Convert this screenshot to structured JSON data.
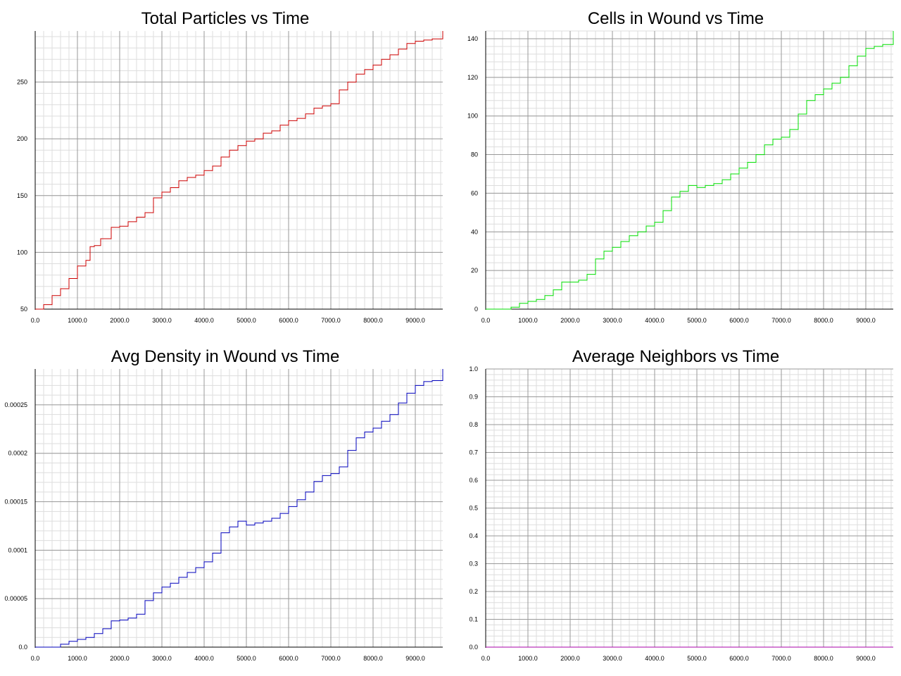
{
  "chart_data": [
    {
      "type": "line",
      "title": "Total Particles vs Time",
      "xlabel": "",
      "ylabel": "",
      "xlim": [
        0,
        9650
      ],
      "ylim": [
        50,
        295
      ],
      "x_ticks": [
        0,
        1000,
        2000,
        3000,
        4000,
        5000,
        6000,
        7000,
        8000,
        9000
      ],
      "x_tick_labels": [
        "0.0",
        "1000.0",
        "2000.0",
        "3000.0",
        "4000.0",
        "5000.0",
        "6000.0",
        "7000.0",
        "8000.0",
        "9000.0"
      ],
      "y_ticks": [
        50,
        100,
        150,
        200,
        250
      ],
      "y_tick_labels": [
        "50",
        "100",
        "150",
        "200",
        "250"
      ],
      "x_minor_step": 200,
      "y_minor_step": 10,
      "grid": true,
      "color": "#cc0000",
      "series": [
        {
          "x": [
            0,
            200,
            400,
            600,
            800,
            1000,
            1200,
            1300,
            1400,
            1550,
            1800,
            2000,
            2200,
            2400,
            2600,
            2800,
            3000,
            3200,
            3400,
            3600,
            3800,
            4000,
            4200,
            4400,
            4600,
            4800,
            5000,
            5200,
            5400,
            5600,
            5800,
            6000,
            6200,
            6400,
            6600,
            6800,
            7000,
            7200,
            7400,
            7600,
            7800,
            8000,
            8200,
            8400,
            8600,
            8800,
            9000,
            9200,
            9400,
            9650
          ],
          "y": [
            50,
            54,
            62,
            68,
            77,
            88,
            93,
            105,
            106,
            112,
            122,
            123,
            127,
            131,
            135,
            148,
            153,
            157,
            163,
            166,
            168,
            172,
            176,
            184,
            190,
            194,
            198,
            200,
            205,
            207,
            212,
            216,
            218,
            222,
            227,
            229,
            231,
            243,
            250,
            257,
            261,
            265,
            270,
            274,
            279,
            284,
            286,
            287,
            288,
            295
          ]
        }
      ]
    },
    {
      "type": "line",
      "title": "Cells in Wound vs Time",
      "xlabel": "",
      "ylabel": "",
      "xlim": [
        0,
        9650
      ],
      "ylim": [
        0,
        144
      ],
      "x_ticks": [
        0,
        1000,
        2000,
        3000,
        4000,
        5000,
        6000,
        7000,
        8000,
        9000
      ],
      "x_tick_labels": [
        "0.0",
        "1000.0",
        "2000.0",
        "3000.0",
        "4000.0",
        "5000.0",
        "6000.0",
        "7000.0",
        "8000.0",
        "9000.0"
      ],
      "y_ticks": [
        0,
        20,
        40,
        60,
        80,
        100,
        120,
        140
      ],
      "y_tick_labels": [
        "0",
        "20",
        "40",
        "60",
        "80",
        "100",
        "120",
        "140"
      ],
      "x_minor_step": 200,
      "y_minor_step": 4,
      "grid": true,
      "color": "#00dd00",
      "series": [
        {
          "x": [
            0,
            400,
            600,
            800,
            1000,
            1200,
            1400,
            1600,
            1800,
            2000,
            2200,
            2400,
            2600,
            2800,
            3000,
            3200,
            3400,
            3600,
            3800,
            4000,
            4200,
            4400,
            4600,
            4800,
            5000,
            5200,
            5400,
            5600,
            5800,
            6000,
            6200,
            6400,
            6600,
            6800,
            7000,
            7200,
            7400,
            7600,
            7800,
            8000,
            8200,
            8400,
            8600,
            8800,
            9000,
            9200,
            9400,
            9650
          ],
          "y": [
            0,
            0,
            1,
            3,
            4,
            5,
            7,
            10,
            14,
            14,
            15,
            18,
            26,
            30,
            32,
            35,
            38,
            40,
            43,
            45,
            51,
            58,
            61,
            64,
            63,
            64,
            65,
            67,
            70,
            73,
            76,
            80,
            85,
            88,
            89,
            93,
            101,
            108,
            111,
            114,
            117,
            120,
            126,
            131,
            135,
            136,
            137,
            144
          ]
        }
      ]
    },
    {
      "type": "line",
      "title": "Avg Density in Wound vs Time",
      "xlabel": "",
      "ylabel": "",
      "xlim": [
        0,
        9650
      ],
      "ylim": [
        0,
        0.000287
      ],
      "x_ticks": [
        0,
        1000,
        2000,
        3000,
        4000,
        5000,
        6000,
        7000,
        8000,
        9000
      ],
      "x_tick_labels": [
        "0.0",
        "1000.0",
        "2000.0",
        "3000.0",
        "4000.0",
        "5000.0",
        "6000.0",
        "7000.0",
        "8000.0",
        "9000.0"
      ],
      "y_ticks": [
        0,
        5e-05,
        0.0001,
        0.00015,
        0.0002,
        0.00025
      ],
      "y_tick_labels": [
        "0.0",
        "0.00005",
        "0.0001",
        "0.00015",
        "0.0002",
        "0.00025"
      ],
      "x_minor_step": 200,
      "y_minor_step": 1e-05,
      "grid": true,
      "color": "#0000bb",
      "series": [
        {
          "x": [
            0,
            400,
            600,
            800,
            1000,
            1200,
            1400,
            1600,
            1800,
            2000,
            2200,
            2400,
            2600,
            2800,
            3000,
            3200,
            3400,
            3600,
            3800,
            4000,
            4200,
            4400,
            4600,
            4800,
            5000,
            5200,
            5400,
            5600,
            5800,
            6000,
            6200,
            6400,
            6600,
            6800,
            7000,
            7200,
            7400,
            7600,
            7800,
            8000,
            8200,
            8400,
            8600,
            8800,
            9000,
            9200,
            9400,
            9650
          ],
          "y": [
            0,
            0,
            3e-06,
            6e-06,
            8e-06,
            1e-05,
            1.4e-05,
            1.9e-05,
            2.7e-05,
            2.8e-05,
            3e-05,
            3.4e-05,
            4.8e-05,
            5.6e-05,
            6.2e-05,
            6.6e-05,
            7.2e-05,
            7.7e-05,
            8.2e-05,
            8.8e-05,
            9.7e-05,
            0.000118,
            0.000124,
            0.00013,
            0.000126,
            0.000128,
            0.00013,
            0.000133,
            0.000138,
            0.000145,
            0.000152,
            0.00016,
            0.000171,
            0.000177,
            0.000179,
            0.000186,
            0.000203,
            0.000216,
            0.000222,
            0.000226,
            0.000233,
            0.00024,
            0.000252,
            0.000262,
            0.00027,
            0.000274,
            0.000275,
            0.000287
          ]
        }
      ]
    },
    {
      "type": "line",
      "title": "Average Neighbors vs Time",
      "xlabel": "",
      "ylabel": "",
      "xlim": [
        0,
        9650
      ],
      "ylim": [
        0,
        1.0
      ],
      "x_ticks": [
        0,
        1000,
        2000,
        3000,
        4000,
        5000,
        6000,
        7000,
        8000,
        9000
      ],
      "x_tick_labels": [
        "0.0",
        "1000.0",
        "2000.0",
        "3000.0",
        "4000.0",
        "5000.0",
        "6000.0",
        "7000.0",
        "8000.0",
        "9000.0"
      ],
      "y_ticks": [
        0,
        0.1,
        0.2,
        0.3,
        0.4,
        0.5,
        0.6,
        0.7,
        0.8,
        0.9,
        1.0
      ],
      "y_tick_labels": [
        "0.0",
        "0.1",
        "0.2",
        "0.3",
        "0.4",
        "0.5",
        "0.6",
        "0.7",
        "0.8",
        "0.9",
        "1.0"
      ],
      "x_minor_step": 200,
      "y_minor_step": 0.02,
      "grid": true,
      "color": "#aa00aa",
      "series": [
        {
          "x": [
            0,
            9650
          ],
          "y": [
            0,
            0
          ]
        }
      ]
    }
  ]
}
